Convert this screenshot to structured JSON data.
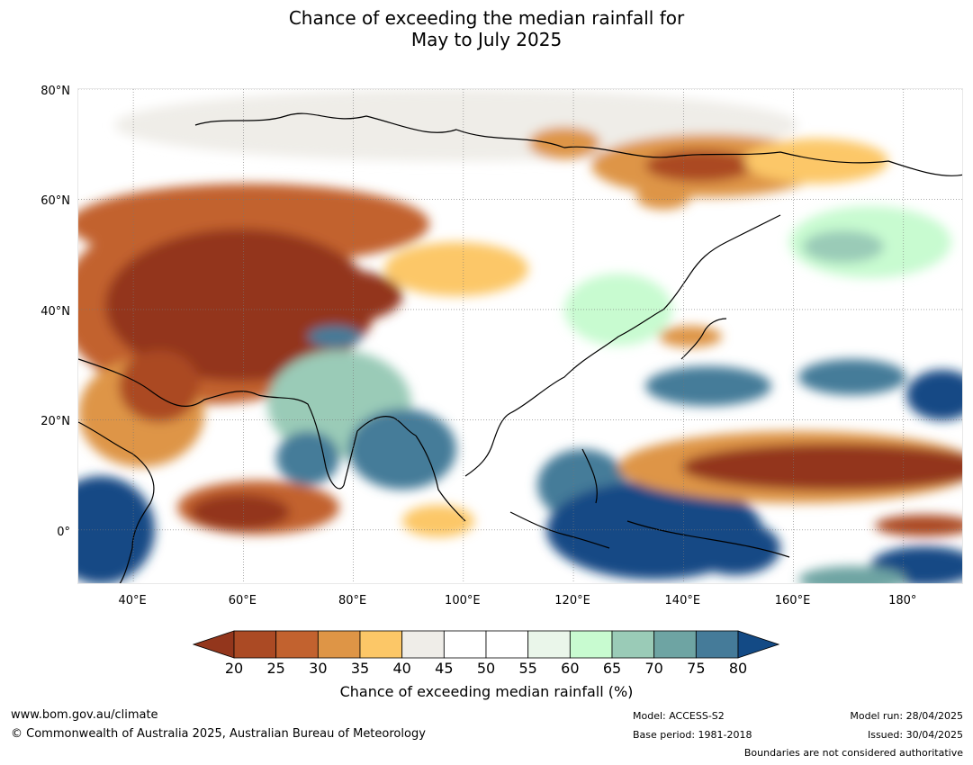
{
  "title": {
    "line1": "Chance of exceeding the median rainfall for",
    "line2": "May to July 2025"
  },
  "map": {
    "projection": "equirectangular",
    "extent": {
      "lon_min": 30,
      "lon_max": 191,
      "lat_min": -10,
      "lat_max": 80
    },
    "lat_labels": [
      {
        "lat": 80,
        "text": "80°N"
      },
      {
        "lat": 60,
        "text": "60°N"
      },
      {
        "lat": 40,
        "text": "40°N"
      },
      {
        "lat": 20,
        "text": "20°N"
      },
      {
        "lat": 0,
        "text": "0°"
      }
    ],
    "lon_labels": [
      {
        "lon": 40,
        "text": "40°E"
      },
      {
        "lon": 60,
        "text": "60°E"
      },
      {
        "lon": 80,
        "text": "80°E"
      },
      {
        "lon": 100,
        "text": "100°E"
      },
      {
        "lon": 120,
        "text": "120°E"
      },
      {
        "lon": 140,
        "text": "140°E"
      },
      {
        "lon": 160,
        "text": "160°E"
      },
      {
        "lon": 180,
        "text": "180°"
      }
    ],
    "gridlines": true
  },
  "colorbar": {
    "label": "Chance of exceeding median rainfall (%)",
    "ticks": [
      "20",
      "25",
      "30",
      "35",
      "40",
      "45",
      "50",
      "55",
      "60",
      "65",
      "70",
      "75",
      "80"
    ],
    "low_extend_color": "#93361c",
    "high_extend_color": "#134a85",
    "colors": [
      "#ab4a24",
      "#c2622f",
      "#de9546",
      "#fcc767",
      "#efede8",
      "#ffffff",
      "#ffffff",
      "#eaf6ea",
      "#c8fbd0",
      "#9acbb7",
      "#6ea4a3",
      "#457b99"
    ]
  },
  "footer": {
    "url": "www.bom.gov.au/climate",
    "copyright": "© Commonwealth of Australia 2025, Australian Bureau of Meteorology",
    "model": "Model: ACCESS-S2",
    "base_period": "Base period: 1981-2018",
    "model_run": "Model run: 28/04/2025",
    "issued": "Issued: 30/04/2025",
    "disclaimer": "Boundaries are not considered authoritative"
  }
}
